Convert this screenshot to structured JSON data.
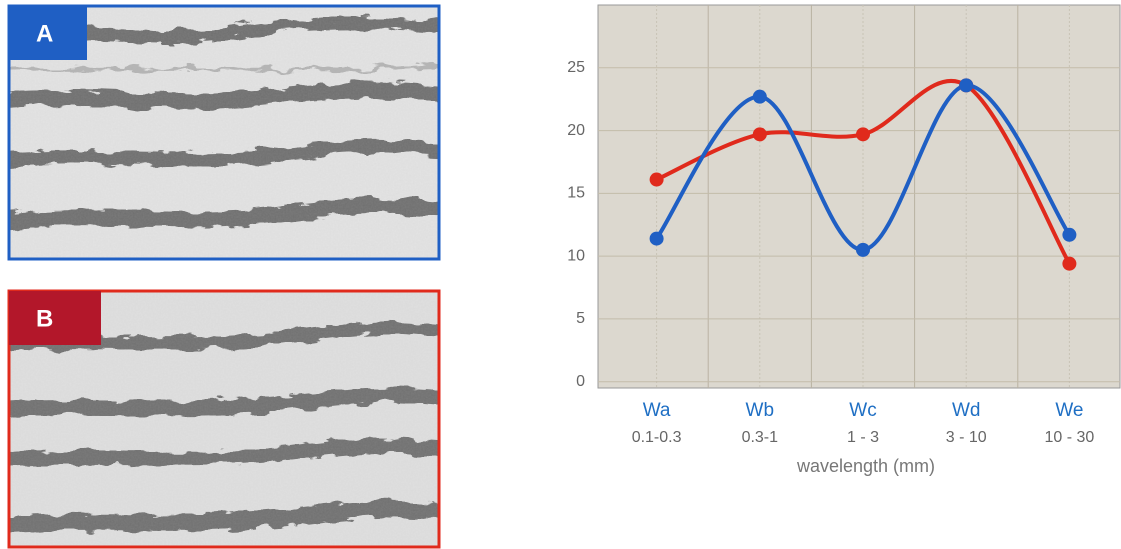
{
  "panels": [
    {
      "label": "A"
    },
    {
      "label": "B"
    }
  ],
  "chart_data": {
    "type": "line",
    "categories": [
      "Wa",
      "Wb",
      "Wc",
      "Wd",
      "We"
    ],
    "category_ranges": [
      "0.1-0.3",
      "0.3-1",
      "1 - 3",
      "3 - 10",
      "10 - 30"
    ],
    "x_label": "wavelength (mm)",
    "series": [
      {
        "color": "#e02a1c",
        "values": [
          16.1,
          19.7,
          19.7,
          23.6,
          9.4
        ]
      },
      {
        "color": "#1f5fc4",
        "values": [
          11.4,
          22.7,
          10.5,
          23.6,
          11.7
        ]
      }
    ],
    "ylim": [
      -0.5,
      30
    ],
    "yticks": [
      0,
      5,
      10,
      15,
      20,
      25
    ],
    "grid": true,
    "smooth": true
  }
}
